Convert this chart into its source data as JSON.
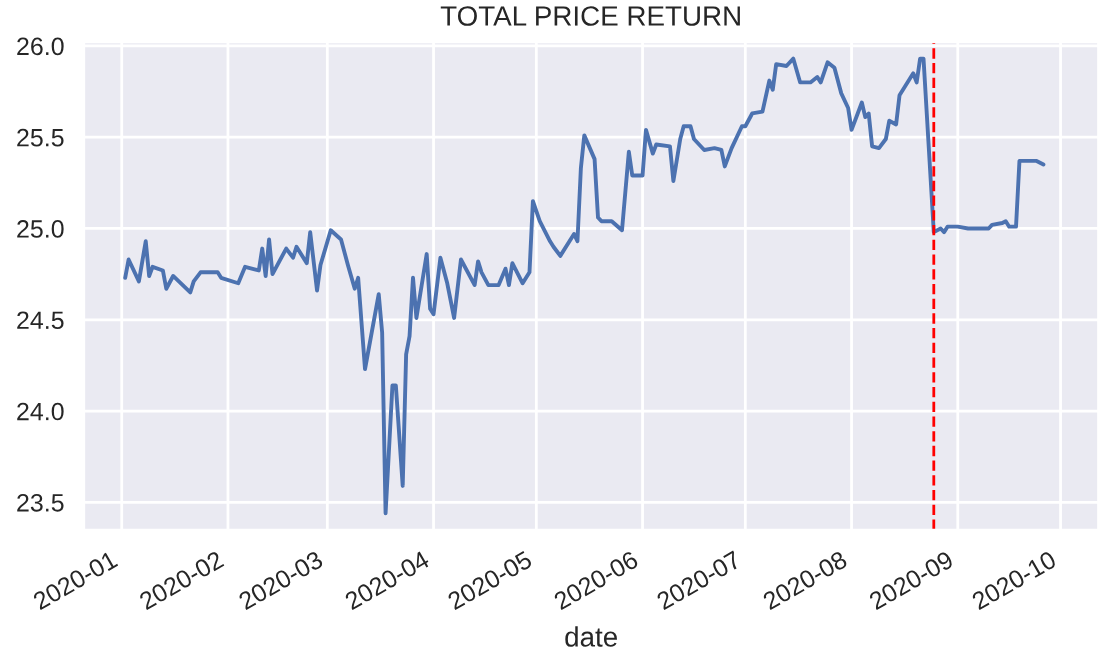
{
  "chart_data": {
    "type": "line",
    "title": "TOTAL PRICE RETURN",
    "xlabel": "date",
    "x": [
      "2020-01-02",
      "2020-01-03",
      "2020-01-06",
      "2020-01-08",
      "2020-01-09",
      "2020-01-10",
      "2020-01-13",
      "2020-01-14",
      "2020-01-16",
      "2020-01-21",
      "2020-01-22",
      "2020-01-24",
      "2020-01-29",
      "2020-01-30",
      "2020-02-04",
      "2020-02-06",
      "2020-02-10",
      "2020-02-11",
      "2020-02-12",
      "2020-02-13",
      "2020-02-14",
      "2020-02-18",
      "2020-02-20",
      "2020-02-21",
      "2020-02-24",
      "2020-02-25",
      "2020-02-27",
      "2020-02-28",
      "2020-03-02",
      "2020-03-05",
      "2020-03-07",
      "2020-03-09",
      "2020-03-10",
      "2020-03-12",
      "2020-03-16",
      "2020-03-17",
      "2020-03-18",
      "2020-03-20",
      "2020-03-21",
      "2020-03-23",
      "2020-03-24",
      "2020-03-25",
      "2020-03-26",
      "2020-03-27",
      "2020-03-30",
      "2020-03-31",
      "2020-04-01",
      "2020-04-03",
      "2020-04-05",
      "2020-04-07",
      "2020-04-09",
      "2020-04-13",
      "2020-04-14",
      "2020-04-15",
      "2020-04-17",
      "2020-04-20",
      "2020-04-22",
      "2020-04-23",
      "2020-04-24",
      "2020-04-27",
      "2020-04-29",
      "2020-04-30",
      "2020-05-02",
      "2020-05-05",
      "2020-05-06",
      "2020-05-08",
      "2020-05-12",
      "2020-05-13",
      "2020-05-14",
      "2020-05-15",
      "2020-05-18",
      "2020-05-19",
      "2020-05-20",
      "2020-05-23",
      "2020-05-26",
      "2020-05-28",
      "2020-05-29",
      "2020-06-01",
      "2020-06-02",
      "2020-06-04",
      "2020-06-05",
      "2020-06-09",
      "2020-06-10",
      "2020-06-12",
      "2020-06-13",
      "2020-06-15",
      "2020-06-16",
      "2020-06-19",
      "2020-06-22",
      "2020-06-24",
      "2020-06-25",
      "2020-06-27",
      "2020-06-30",
      "2020-07-01",
      "2020-07-03",
      "2020-07-06",
      "2020-07-08",
      "2020-07-09",
      "2020-07-10",
      "2020-07-13",
      "2020-07-15",
      "2020-07-17",
      "2020-07-20",
      "2020-07-22",
      "2020-07-23",
      "2020-07-25",
      "2020-07-27",
      "2020-07-29",
      "2020-07-31",
      "2020-08-01",
      "2020-08-04",
      "2020-08-05",
      "2020-08-06",
      "2020-08-07",
      "2020-08-09",
      "2020-08-11",
      "2020-08-12",
      "2020-08-14",
      "2020-08-15",
      "2020-08-19",
      "2020-08-20",
      "2020-08-21",
      "2020-08-22",
      "2020-08-25",
      "2020-08-27",
      "2020-08-28",
      "2020-08-29",
      "2020-09-01",
      "2020-09-04",
      "2020-09-10",
      "2020-09-11",
      "2020-09-14",
      "2020-09-15",
      "2020-09-16",
      "2020-09-18",
      "2020-09-19",
      "2020-09-23",
      "2020-09-24",
      "2020-09-26"
    ],
    "series": [
      {
        "color": "#4c72b0",
        "values": [
          24.73,
          24.83,
          24.71,
          24.93,
          24.74,
          24.79,
          24.77,
          24.67,
          24.74,
          24.65,
          24.71,
          24.76,
          24.76,
          24.73,
          24.7,
          24.79,
          24.77,
          24.89,
          24.74,
          24.94,
          24.75,
          24.89,
          24.84,
          24.9,
          24.81,
          24.98,
          24.66,
          24.8,
          24.99,
          24.94,
          24.8,
          24.67,
          24.73,
          24.23,
          24.64,
          24.43,
          23.44,
          24.14,
          24.14,
          23.59,
          24.31,
          24.41,
          24.73,
          24.51,
          24.86,
          24.56,
          24.53,
          24.84,
          24.7,
          24.51,
          24.83,
          24.69,
          24.82,
          24.76,
          24.69,
          24.69,
          24.78,
          24.69,
          24.81,
          24.7,
          24.76,
          25.15,
          25.04,
          24.93,
          24.9,
          24.85,
          24.97,
          24.93,
          25.33,
          25.51,
          25.38,
          25.06,
          25.04,
          25.04,
          24.99,
          25.42,
          25.29,
          25.29,
          25.54,
          25.41,
          25.46,
          25.45,
          25.26,
          25.49,
          25.56,
          25.56,
          25.49,
          25.43,
          25.44,
          25.43,
          25.34,
          25.44,
          25.56,
          25.56,
          25.63,
          25.64,
          25.81,
          25.76,
          25.9,
          25.89,
          25.93,
          25.8,
          25.8,
          25.83,
          25.8,
          25.91,
          25.88,
          25.74,
          25.66,
          25.54,
          25.69,
          25.61,
          25.63,
          25.45,
          25.44,
          25.49,
          25.59,
          25.57,
          25.73,
          25.85,
          25.8,
          25.93,
          25.93,
          24.98,
          25.0,
          24.98,
          25.01,
          25.01,
          25.0,
          25.0,
          25.02,
          25.03,
          25.04,
          25.01,
          25.01,
          25.37,
          25.37,
          25.37,
          25.35
        ]
      }
    ],
    "xlim": [
      "2019-12-21",
      "2020-10-12"
    ],
    "xticks": [
      {
        "value": "2020-01-01",
        "label": "2020-01"
      },
      {
        "value": "2020-02-01",
        "label": "2020-02"
      },
      {
        "value": "2020-03-01",
        "label": "2020-03"
      },
      {
        "value": "2020-04-01",
        "label": "2020-04"
      },
      {
        "value": "2020-05-01",
        "label": "2020-05"
      },
      {
        "value": "2020-06-01",
        "label": "2020-06"
      },
      {
        "value": "2020-07-01",
        "label": "2020-07"
      },
      {
        "value": "2020-08-01",
        "label": "2020-08"
      },
      {
        "value": "2020-09-01",
        "label": "2020-09"
      },
      {
        "value": "2020-10-01",
        "label": "2020-10"
      }
    ],
    "ylim": [
      23.35,
      26.02
    ],
    "yticks": [
      23.5,
      {
        "value": 24,
        "label": "24.0"
      },
      24.5,
      {
        "value": 25,
        "label": "25.0"
      },
      25.5,
      {
        "value": 26,
        "label": "26.0"
      }
    ],
    "ref_lines": [
      {
        "axis": "x",
        "value": "2020-08-25",
        "color": "#ff0000",
        "line_style": "dashed"
      }
    ],
    "grid": true,
    "line_style": "solid"
  }
}
